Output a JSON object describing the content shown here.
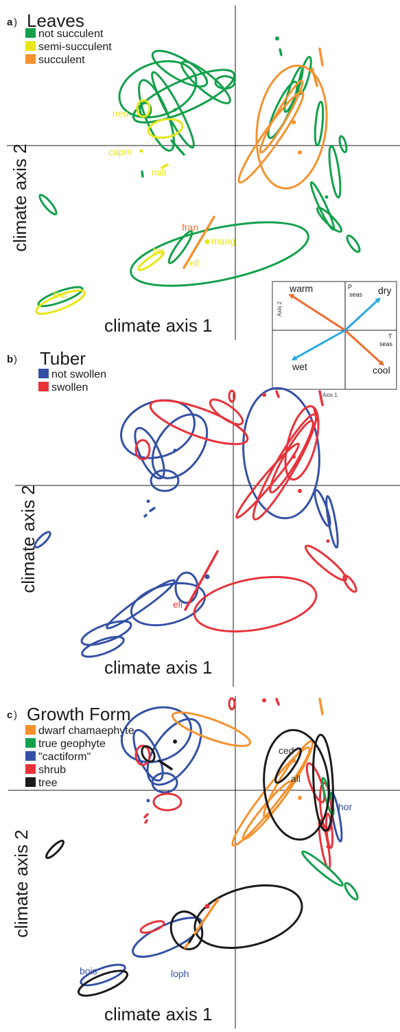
{
  "panels": [
    {
      "letter": "a",
      "title": "Leaves",
      "legend": [
        {
          "label": "not succulent",
          "color": "#12a04b"
        },
        {
          "label": "semi-succulent",
          "color": "#e8e614"
        },
        {
          "label": "succulent",
          "color": "#f5922f"
        }
      ],
      "xlabel": "climate axis 1",
      "ylabel": "climate axis 2",
      "species_labels": [
        {
          "text": "neo",
          "color": "#e8e614"
        },
        {
          "text": "capm",
          "color": "#e8e614"
        },
        {
          "text": "mill",
          "color": "#e8e614"
        },
        {
          "text": "fran",
          "color": "#f26a2a"
        },
        {
          "text": "mang",
          "color": "#e8e614"
        },
        {
          "text": "tar",
          "color": "#e8e614"
        },
        {
          "text": "ell",
          "color": "#e8e614"
        },
        {
          "text": "thu",
          "color": "#e8e614"
        }
      ]
    },
    {
      "letter": "b",
      "title": "Tuber",
      "legend": [
        {
          "label": "not swollen",
          "color": "#3450a5"
        },
        {
          "label": "swollen",
          "color": "#e8323a"
        }
      ],
      "xlabel": "climate axis 1",
      "ylabel": "climate axis 2",
      "species_labels": [
        {
          "text": "ell",
          "color": "#e8323a"
        }
      ]
    },
    {
      "letter": "c",
      "title": "Growth Form",
      "legend": [
        {
          "label": "dwarf chamaephyte",
          "color": "#f5922f"
        },
        {
          "label": "true geophyte",
          "color": "#12a04b"
        },
        {
          "label": "\"cactiform\"",
          "color": "#3450a5"
        },
        {
          "label": "shrub",
          "color": "#e8323a"
        },
        {
          "label": "tree",
          "color": "#1a1a1a"
        }
      ],
      "xlabel": "climate axis 1",
      "ylabel": "climate axis 2",
      "species_labels": [
        {
          "text": "ced",
          "color": "#333333"
        },
        {
          "text": "all",
          "color": "#333333"
        },
        {
          "text": "hor",
          "color": "#3450a5"
        },
        {
          "text": "bois",
          "color": "#3450a5"
        },
        {
          "text": "loph",
          "color": "#3450a5"
        }
      ]
    }
  ],
  "inset": {
    "xlabel": "Axis 1",
    "ylabel": "Axis 2",
    "vectors": [
      {
        "label": "warm",
        "color": "#f26a2a"
      },
      {
        "label": "cool",
        "color": "#f26a2a"
      },
      {
        "label": "dry",
        "color": "#29a8e0"
      },
      {
        "label": "wet",
        "color": "#29a8e0"
      }
    ],
    "p_label": "P",
    "p_sub": "seas",
    "t_label": "T",
    "t_sub": "seas"
  },
  "chart_data": {
    "type": "scatter",
    "title": "",
    "xlabel": "climate axis 1",
    "ylabel": "climate axis 2",
    "note": "",
    "panels": [
      "Leaves",
      "Tuber",
      "Growth Form"
    ]
  }
}
